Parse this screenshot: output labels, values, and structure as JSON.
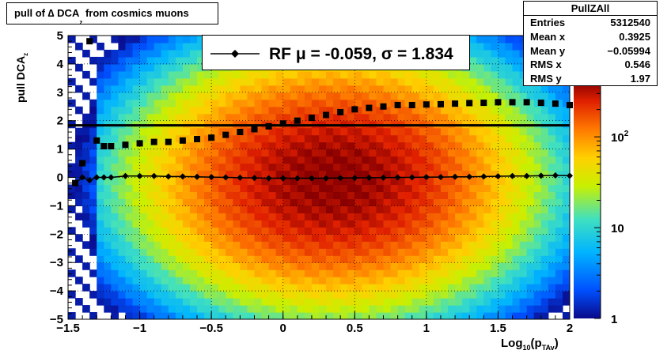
{
  "title": {
    "text": "pull of ∆ DCA",
    "sub": "z",
    "suffix": " from cosmics muons"
  },
  "stats_box": {
    "name": "PullZAll",
    "rows": [
      {
        "label": "Entries",
        "value": "5312540"
      },
      {
        "label": "Mean x",
        "value": "0.3925"
      },
      {
        "label": "Mean y",
        "value": "−0.05994"
      },
      {
        "label": "RMS x",
        "value": "0.546"
      },
      {
        "label": "RMS y",
        "value": "1.97"
      }
    ]
  },
  "legend": {
    "text": "RF μ = -0.059, σ =   1.834"
  },
  "axes": {
    "ylabel_main": "pull DCA",
    "ylabel_sub": "z",
    "xlabel_main": "Log",
    "xlabel_sub": "10",
    "xlabel_paren": "(p",
    "xlabel_sub2": "TAv",
    "xlabel_end": ")"
  },
  "colors": {
    "frame": "#000000",
    "marker": "#000000"
  },
  "chart_data": {
    "type": "heatmap",
    "xlim": [
      -1.5,
      2.0
    ],
    "ylim": [
      -5,
      5
    ],
    "xticks": [
      "−1.5",
      "−1",
      "−0.5",
      "0",
      "0.5",
      "1",
      "1.5",
      "2"
    ],
    "yticks": [
      "−5",
      "−4",
      "−3",
      "−2",
      "−1",
      "0",
      "1",
      "2",
      "3",
      "4",
      "5"
    ],
    "zaxis": {
      "scale": "log",
      "ticks": [
        "1",
        "10",
        "10^2"
      ],
      "range": [
        1,
        400
      ]
    },
    "grid": true,
    "mean_line": {
      "x": [
        -1.45,
        -1.4,
        -1.35,
        -1.3,
        -1.25,
        -1.2,
        -1.1,
        -1.0,
        -0.9,
        -0.8,
        -0.7,
        -0.6,
        -0.5,
        -0.4,
        -0.3,
        -0.2,
        -0.1,
        0.0,
        0.1,
        0.2,
        0.3,
        0.4,
        0.5,
        0.6,
        0.7,
        0.8,
        0.9,
        1.0,
        1.1,
        1.2,
        1.3,
        1.4,
        1.5,
        1.6,
        1.7,
        1.8,
        1.9,
        2.0
      ],
      "y": [
        -0.2,
        0.0,
        -0.1,
        0.0,
        0.0,
        0.0,
        0.05,
        0.05,
        0.05,
        0.03,
        0.03,
        0.02,
        0.01,
        0.0,
        -0.01,
        -0.02,
        -0.03,
        -0.03,
        -0.03,
        -0.03,
        -0.03,
        -0.02,
        -0.02,
        -0.01,
        -0.01,
        0.0,
        0.0,
        0.01,
        0.01,
        0.02,
        0.02,
        0.03,
        0.04,
        0.05,
        0.05,
        0.06,
        0.07,
        0.06
      ]
    },
    "rms_line": {
      "x": [
        -1.45,
        -1.4,
        -1.35,
        -1.3,
        -1.25,
        -1.2,
        -1.1,
        -1.0,
        -0.9,
        -0.8,
        -0.7,
        -0.6,
        -0.5,
        -0.4,
        -0.3,
        -0.2,
        -0.1,
        0.0,
        0.1,
        0.2,
        0.3,
        0.4,
        0.5,
        0.6,
        0.7,
        0.8,
        0.9,
        1.0,
        1.1,
        1.2,
        1.3,
        1.4,
        1.5,
        1.6,
        1.7,
        1.8,
        1.9,
        2.0
      ],
      "y": [
        -0.2,
        0.5,
        4.8,
        1.3,
        1.1,
        1.1,
        1.15,
        1.2,
        1.25,
        1.25,
        1.3,
        1.35,
        1.4,
        1.5,
        1.6,
        1.7,
        1.8,
        1.9,
        2.0,
        2.1,
        2.2,
        2.3,
        2.4,
        2.45,
        2.5,
        2.55,
        2.55,
        2.57,
        2.58,
        2.6,
        2.62,
        2.63,
        2.65,
        2.65,
        2.65,
        2.63,
        2.6,
        2.55
      ]
    },
    "fit_sigma_line": {
      "y": 1.834
    },
    "heat_model": {
      "peak": 400,
      "center_x": 0.35,
      "center_y": -0.06,
      "width_x": 0.6,
      "width_y": 2.0
    }
  }
}
